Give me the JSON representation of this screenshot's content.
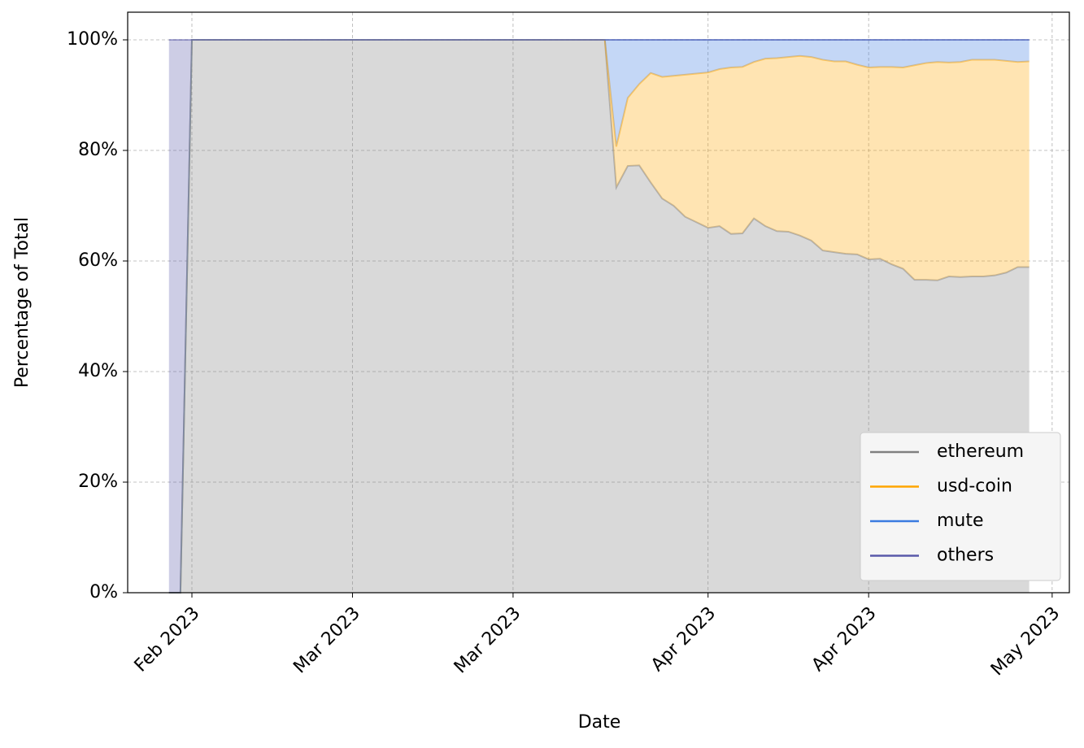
{
  "chart_data": {
    "type": "stacked_area",
    "x_label": "Date",
    "y_label": "Percentage of Total",
    "x": [
      0,
      1,
      2,
      3,
      4,
      5,
      6,
      7,
      8,
      9,
      10,
      11,
      12,
      13,
      14,
      15,
      16,
      17,
      18,
      19,
      20,
      21,
      22,
      23,
      24,
      25,
      26,
      27,
      28,
      29,
      30,
      31,
      32,
      33,
      34,
      35,
      36,
      37,
      38,
      39,
      40,
      41,
      42,
      43,
      44,
      45,
      46,
      47,
      48,
      49,
      50,
      51,
      52,
      53,
      54,
      55,
      56,
      57,
      58,
      59,
      60,
      61,
      62,
      63,
      64,
      65,
      66,
      67,
      68,
      69,
      70,
      71,
      72,
      73,
      74,
      75
    ],
    "xlim": [
      -3.6,
      78.5
    ],
    "xticks": [
      {
        "value": 2,
        "label": "Feb 2023"
      },
      {
        "value": 16,
        "label": "Mar 2023"
      },
      {
        "value": 30,
        "label": "Mar 2023"
      },
      {
        "value": 47,
        "label": "Apr 2023"
      },
      {
        "value": 61,
        "label": "Apr 2023"
      },
      {
        "value": 77,
        "label": "May 2023"
      }
    ],
    "ylim": [
      0,
      105
    ],
    "yticks": [
      {
        "value": 0,
        "label": "0%"
      },
      {
        "value": 20,
        "label": "20%"
      },
      {
        "value": 40,
        "label": "40%"
      },
      {
        "value": 60,
        "label": "60%"
      },
      {
        "value": 80,
        "label": "80%"
      },
      {
        "value": 100,
        "label": "100%"
      }
    ],
    "grid": true,
    "legend": "lower right",
    "series": [
      {
        "name": "ethereum",
        "color": "#808080",
        "values": [
          0,
          0,
          100,
          100,
          100,
          100,
          100,
          100,
          100,
          100,
          100,
          100,
          100,
          100,
          100,
          100,
          100,
          100,
          100,
          100,
          100,
          100,
          100,
          100,
          100,
          100,
          100,
          100,
          100,
          100,
          100,
          100,
          100,
          100,
          100,
          100,
          100,
          100,
          100,
          73.3,
          77.2,
          77.3,
          74.2,
          71.3,
          70,
          68,
          67,
          66,
          66.3,
          64.9,
          65,
          67.7,
          66.3,
          65.4,
          65.3,
          64.6,
          63.7,
          61.9,
          61.6,
          61.3,
          61.2,
          60.3,
          60.4,
          59.4,
          58.6,
          56.6,
          56.6,
          56.5,
          57.2,
          57.1,
          57.2,
          57.2,
          57.4,
          57.9,
          58.9,
          58.9
        ]
      },
      {
        "name": "usd-coin",
        "color": "#ffa500",
        "values": [
          0,
          0,
          0,
          0,
          0,
          0,
          0,
          0,
          0,
          0,
          0,
          0,
          0,
          0,
          0,
          0,
          0,
          0,
          0,
          0,
          0,
          0,
          0,
          0,
          0,
          0,
          0,
          0,
          0,
          0,
          0,
          0,
          0,
          0,
          0,
          0,
          0,
          0,
          0,
          7.4,
          12.3,
          14.7,
          19.8,
          22,
          23.5,
          25.7,
          26.9,
          28.1,
          28.4,
          30.1,
          30.1,
          28.3,
          30.3,
          31.3,
          31.6,
          32.5,
          33.2,
          34.5,
          34.5,
          34.8,
          34.3,
          34.7,
          34.7,
          35.7,
          36.4,
          38.8,
          39.2,
          39.5,
          38.7,
          38.9,
          39.2,
          39.2,
          39,
          38.3,
          37.1,
          37.2
        ]
      },
      {
        "name": "mute",
        "color": "#3a7be0",
        "values": [
          0,
          0,
          0,
          0,
          0,
          0,
          0,
          0,
          0,
          0,
          0,
          0,
          0,
          0,
          0,
          0,
          0,
          0,
          0,
          0,
          0,
          0,
          0,
          0,
          0,
          0,
          0,
          0,
          0,
          0,
          0,
          0,
          0,
          0,
          0,
          0,
          0,
          0,
          0,
          19.3,
          10.5,
          8,
          6,
          6.7,
          6.5,
          6.3,
          6.1,
          5.9,
          5.3,
          5,
          4.9,
          4,
          3.4,
          3.3,
          3.1,
          2.9,
          3.1,
          3.6,
          3.9,
          3.9,
          4.5,
          5,
          4.9,
          4.9,
          5,
          4.6,
          4.2,
          4,
          4.1,
          4,
          3.6,
          3.6,
          3.6,
          3.8,
          4,
          3.9
        ]
      },
      {
        "name": "others",
        "color": "#5a5aaa",
        "values": [
          100,
          100,
          0,
          0,
          0,
          0,
          0,
          0,
          0,
          0,
          0,
          0,
          0,
          0,
          0,
          0,
          0,
          0,
          0,
          0,
          0,
          0,
          0,
          0,
          0,
          0,
          0,
          0,
          0,
          0,
          0,
          0,
          0,
          0,
          0,
          0,
          0,
          0,
          0,
          0,
          0,
          0,
          0,
          0,
          0,
          0,
          0,
          0,
          0,
          0,
          0,
          0,
          0,
          0,
          0,
          0,
          0,
          0,
          0,
          0,
          0,
          0,
          0,
          0,
          0,
          0,
          0,
          0,
          0,
          0,
          0,
          0,
          0,
          0,
          0,
          0
        ]
      }
    ]
  }
}
